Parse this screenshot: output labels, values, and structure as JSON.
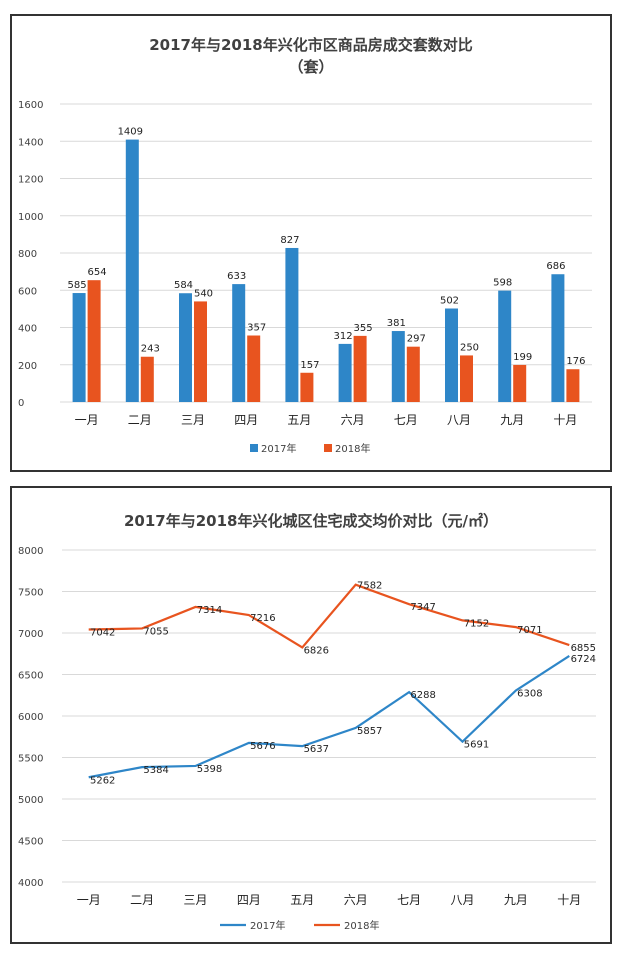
{
  "colors": {
    "series2017": "#2e86c8",
    "series2018": "#e8541f",
    "grid": "#d9d9d9",
    "text": "#404040"
  },
  "chart_data": [
    {
      "type": "bar",
      "title": "2017年与2018年兴化市区商品房成交套数对比",
      "subtitle": "（套）",
      "categories": [
        "一月",
        "二月",
        "三月",
        "四月",
        "五月",
        "六月",
        "七月",
        "八月",
        "九月",
        "十月"
      ],
      "yticks": [
        "0",
        "200",
        "400",
        "600",
        "800",
        "1000",
        "1200",
        "1400",
        "1600"
      ],
      "ylim": [
        0,
        1600
      ],
      "grid": true,
      "legend_position": "bottom",
      "series": [
        {
          "name": "2017年",
          "values": [
            585,
            1409,
            584,
            633,
            827,
            312,
            381,
            502,
            598,
            686
          ]
        },
        {
          "name": "2018年",
          "values": [
            654,
            243,
            540,
            357,
            157,
            355,
            297,
            250,
            199,
            176
          ]
        }
      ]
    },
    {
      "type": "line",
      "title": "2017年与2018年兴化城区住宅成交均价对比（元/㎡）",
      "categories": [
        "一月",
        "二月",
        "三月",
        "四月",
        "五月",
        "六月",
        "七月",
        "八月",
        "九月",
        "十月"
      ],
      "yticks": [
        "4000",
        "4500",
        "5000",
        "5500",
        "6000",
        "6500",
        "7000",
        "7500",
        "8000"
      ],
      "ylim": [
        4000,
        8000
      ],
      "grid": true,
      "legend_position": "bottom",
      "series": [
        {
          "name": "2017年",
          "values": [
            5262,
            5384,
            5398,
            5676,
            5637,
            5857,
            6288,
            5691,
            6308,
            6724
          ]
        },
        {
          "name": "2018年",
          "values": [
            7042,
            7055,
            7314,
            7216,
            6826,
            7582,
            7347,
            7152,
            7071,
            6855
          ]
        }
      ]
    }
  ]
}
